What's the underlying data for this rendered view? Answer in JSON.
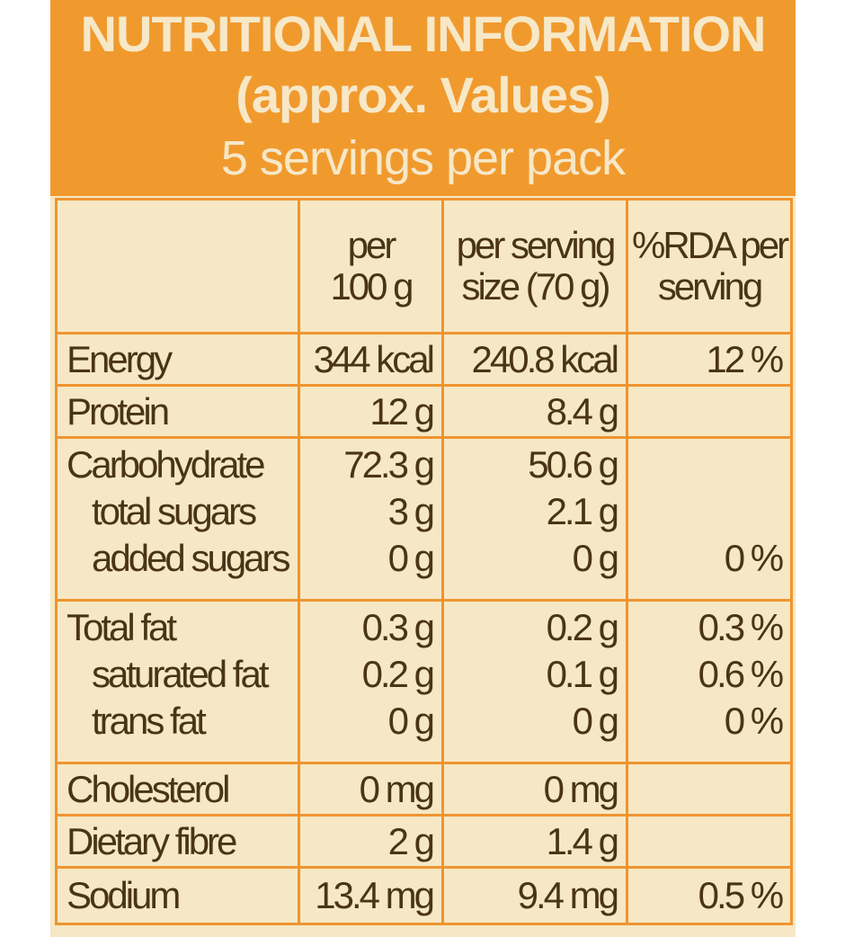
{
  "header": {
    "title_line1": "NUTRITIONAL INFORMATION",
    "title_line2": "(approx. Values)",
    "servings": "5 servings per pack"
  },
  "columns": {
    "per100_line1": "per",
    "per100_line2": "100 g",
    "serving_line1": "per serving",
    "serving_line2": "size (70 g)",
    "rda_line1": "%RDA per",
    "rda_line2": "serving"
  },
  "rows": {
    "energy": {
      "label": "Energy",
      "per100": "344 kcal",
      "serving": "240.8 kcal",
      "rda": "12 %"
    },
    "protein": {
      "label": "Protein",
      "per100": "12 g",
      "serving": "8.4 g",
      "rda": ""
    },
    "carbohydrate": {
      "label": "Carbohydrate",
      "per100": "72.3 g",
      "serving": "50.6 g",
      "rda": ""
    },
    "total_sugars": {
      "label": "total sugars",
      "per100": "3 g",
      "serving": "2.1 g",
      "rda": ""
    },
    "added_sugars": {
      "label": "added sugars",
      "per100": "0 g",
      "serving": "0 g",
      "rda": "0 %"
    },
    "total_fat": {
      "label": "Total fat",
      "per100": "0.3 g",
      "serving": "0.2 g",
      "rda": "0.3 %"
    },
    "saturated_fat": {
      "label": "saturated fat",
      "per100": "0.2 g",
      "serving": "0.1 g",
      "rda": "0.6 %"
    },
    "trans_fat": {
      "label": "trans fat",
      "per100": "0 g",
      "serving": "0 g",
      "rda": "0 %"
    },
    "cholesterol": {
      "label": "Cholesterol",
      "per100": "0 mg",
      "serving": "0 mg",
      "rda": ""
    },
    "dietary_fibre": {
      "label": "Dietary fibre",
      "per100": "2 g",
      "serving": "1.4 g",
      "rda": ""
    },
    "sodium": {
      "label": "Sodium",
      "per100": "13.4 mg",
      "serving": "9.4 mg",
      "rda": "0.5 %"
    }
  },
  "colors": {
    "header_bg": "#f09a2e",
    "panel_bg": "#f6e8c4",
    "grid": "#ef9530",
    "text": "#4a3418",
    "header_text": "#f7e8c8"
  }
}
